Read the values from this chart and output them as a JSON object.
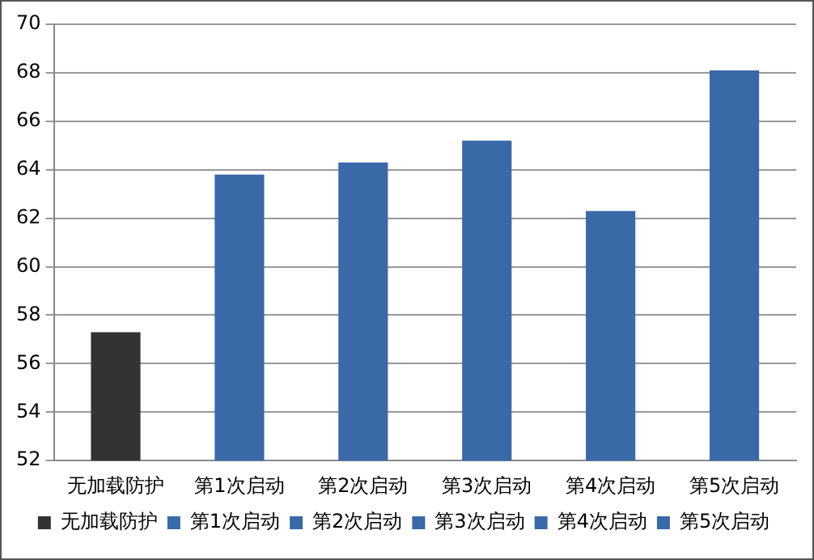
{
  "chart_data": {
    "type": "bar",
    "categories": [
      "无加载防护",
      "第1次启动",
      "第2次启动",
      "第3次启动",
      "第4次启动",
      "第5次启动"
    ],
    "series": [
      {
        "name": "无加载防护",
        "color": "#333333",
        "values": [
          57.3,
          null,
          null,
          null,
          null,
          null
        ]
      },
      {
        "name": "第1次启动",
        "color": "#3a69a8",
        "values": [
          null,
          63.8,
          null,
          null,
          null,
          null
        ]
      },
      {
        "name": "第2次启动",
        "color": "#3a69a8",
        "values": [
          null,
          null,
          64.3,
          null,
          null,
          null
        ]
      },
      {
        "name": "第3次启动",
        "color": "#3a69a8",
        "values": [
          null,
          null,
          null,
          65.2,
          null,
          null
        ]
      },
      {
        "name": "第4次启动",
        "color": "#3a69a8",
        "values": [
          null,
          null,
          null,
          null,
          62.3,
          null
        ]
      },
      {
        "name": "第5次启动",
        "color": "#3a69a8",
        "values": [
          null,
          null,
          null,
          null,
          null,
          68.1
        ]
      }
    ],
    "ylim": [
      52,
      70
    ],
    "yticks": [
      52,
      54,
      56,
      58,
      60,
      62,
      64,
      66,
      68,
      70
    ],
    "grid": "y",
    "legend": "bottom"
  }
}
